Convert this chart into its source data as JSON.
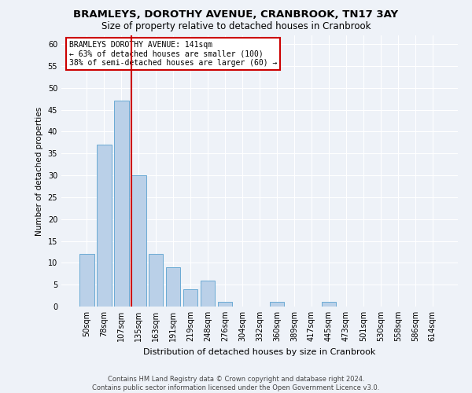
{
  "title_line1": "BRAMLEYS, DOROTHY AVENUE, CRANBROOK, TN17 3AY",
  "title_line2": "Size of property relative to detached houses in Cranbrook",
  "xlabel": "Distribution of detached houses by size in Cranbrook",
  "ylabel": "Number of detached properties",
  "categories": [
    "50sqm",
    "78sqm",
    "107sqm",
    "135sqm",
    "163sqm",
    "191sqm",
    "219sqm",
    "248sqm",
    "276sqm",
    "304sqm",
    "332sqm",
    "360sqm",
    "389sqm",
    "417sqm",
    "445sqm",
    "473sqm",
    "501sqm",
    "530sqm",
    "558sqm",
    "586sqm",
    "614sqm"
  ],
  "values": [
    12,
    37,
    47,
    30,
    12,
    9,
    4,
    6,
    1,
    0,
    0,
    1,
    0,
    0,
    1,
    0,
    0,
    0,
    0,
    0,
    0
  ],
  "bar_color": "#bad0e8",
  "bar_edge_color": "#6aaad4",
  "vline_color": "#cc0000",
  "vline_x_index": 3,
  "annotation_text": "BRAMLEYS DOROTHY AVENUE: 141sqm\n← 63% of detached houses are smaller (100)\n38% of semi-detached houses are larger (60) →",
  "annotation_box_color": "#ffffff",
  "annotation_box_edge": "#cc0000",
  "ylim": [
    0,
    62
  ],
  "yticks": [
    0,
    5,
    10,
    15,
    20,
    25,
    30,
    35,
    40,
    45,
    50,
    55,
    60
  ],
  "footer_line1": "Contains HM Land Registry data © Crown copyright and database right 2024.",
  "footer_line2": "Contains public sector information licensed under the Open Government Licence v3.0.",
  "bg_color": "#eef2f8",
  "plot_bg_color": "#eef2f8",
  "title1_fontsize": 9.5,
  "title2_fontsize": 8.5,
  "xlabel_fontsize": 8,
  "ylabel_fontsize": 7.5,
  "tick_fontsize": 7,
  "footer_fontsize": 6,
  "ann_fontsize": 7
}
